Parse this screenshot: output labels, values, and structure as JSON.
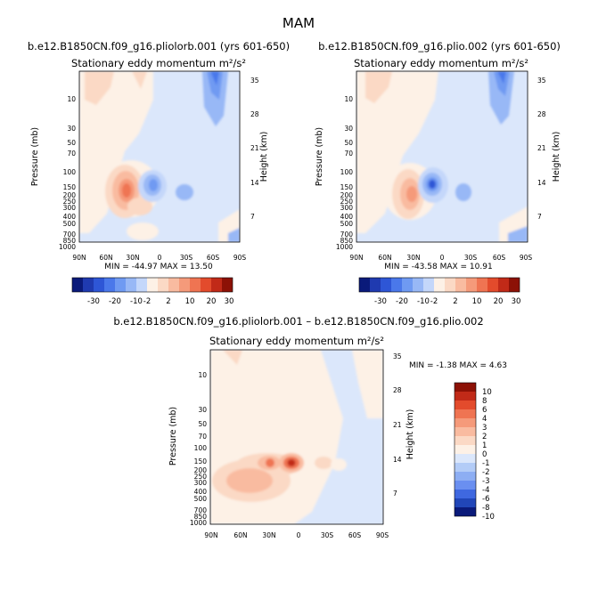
{
  "figure_title": "MAM",
  "chart_data": [
    {
      "type": "heatmap",
      "subtitle": "b.e12.B1850CN.f09_g16.pliolorb.001 (yrs 601-650)",
      "title": "Stationary eddy momentum  m²/s²",
      "ylabel": "Pressure (mb)",
      "ylabel_right": "Height (km)",
      "xticks": [
        "90N",
        "60N",
        "30N",
        "0",
        "30S",
        "60S",
        "90S"
      ],
      "yticks": [
        "10",
        "30",
        "50",
        "70",
        "100",
        "150",
        "200",
        "250",
        "300",
        "400",
        "500",
        "700",
        "850",
        "1000"
      ],
      "yticks_right": [
        "35",
        "28",
        "21",
        "14",
        "7"
      ],
      "stats_text": "MIN = -44.97   MAX =  13.50",
      "min": -44.97,
      "max": 13.5,
      "colorbar_labels": [
        "-30",
        "-20",
        "-10",
        "-2",
        "2",
        "10",
        "20",
        "30"
      ]
    },
    {
      "type": "heatmap",
      "subtitle": "b.e12.B1850CN.f09_g16.plio.002 (yrs 601-650)",
      "title": "Stationary eddy momentum  m²/s²",
      "ylabel": "Pressure (mb)",
      "ylabel_right": "Height (km)",
      "xticks": [
        "90N",
        "60N",
        "30N",
        "0",
        "30S",
        "60S",
        "90S"
      ],
      "yticks": [
        "10",
        "30",
        "50",
        "70",
        "100",
        "150",
        "200",
        "250",
        "300",
        "400",
        "500",
        "700",
        "850",
        "1000"
      ],
      "yticks_right": [
        "35",
        "28",
        "21",
        "14",
        "7"
      ],
      "stats_text": "MIN = -43.58   MAX =  10.91",
      "min": -43.58,
      "max": 10.91,
      "colorbar_labels": [
        "-30",
        "-20",
        "-10",
        "-2",
        "2",
        "10",
        "20",
        "30"
      ]
    },
    {
      "type": "heatmap",
      "subtitle": "b.e12.B1850CN.f09_g16.pliolorb.001 – b.e12.B1850CN.f09_g16.plio.002",
      "title": "Stationary eddy momentum  m²/s²",
      "ylabel": "Pressure (mb)",
      "ylabel_right": "Height (km)",
      "xticks": [
        "90N",
        "60N",
        "30N",
        "0",
        "30S",
        "60S",
        "90S"
      ],
      "yticks": [
        "10",
        "30",
        "50",
        "70",
        "100",
        "150",
        "200",
        "250",
        "300",
        "400",
        "500",
        "700",
        "850",
        "1000"
      ],
      "yticks_right": [
        "35",
        "28",
        "21",
        "14",
        "7"
      ],
      "stats_text": "MIN =    -1.38   MAX =    4.63",
      "min": -1.38,
      "max": 4.63,
      "colorbar_labels": [
        "10",
        "8",
        "6",
        "4",
        "3",
        "2",
        "1",
        "0",
        "-1",
        "-2",
        "-3",
        "-4",
        "-6",
        "-8",
        "-10"
      ]
    }
  ],
  "palette": {
    "main": [
      "#0a1a7a",
      "#1f3ab0",
      "#2e56d6",
      "#4a78ea",
      "#6f9af2",
      "#98b8f6",
      "#c4d7fa",
      "#fdf1e6",
      "#fbd9c5",
      "#f9bba0",
      "#f59a7a",
      "#ef7452",
      "#e34b2c",
      "#c12a18",
      "#8c1106"
    ],
    "diff": [
      "#8c1106",
      "#c12a18",
      "#e34b2c",
      "#ef7452",
      "#f59a7a",
      "#f9bba0",
      "#fbd9c5",
      "#fdf1e6",
      "#dbe7fb",
      "#b3ccf7",
      "#8daef3",
      "#6a8ff0",
      "#3f68e0",
      "#2146b8",
      "#0a1a7a"
    ]
  }
}
